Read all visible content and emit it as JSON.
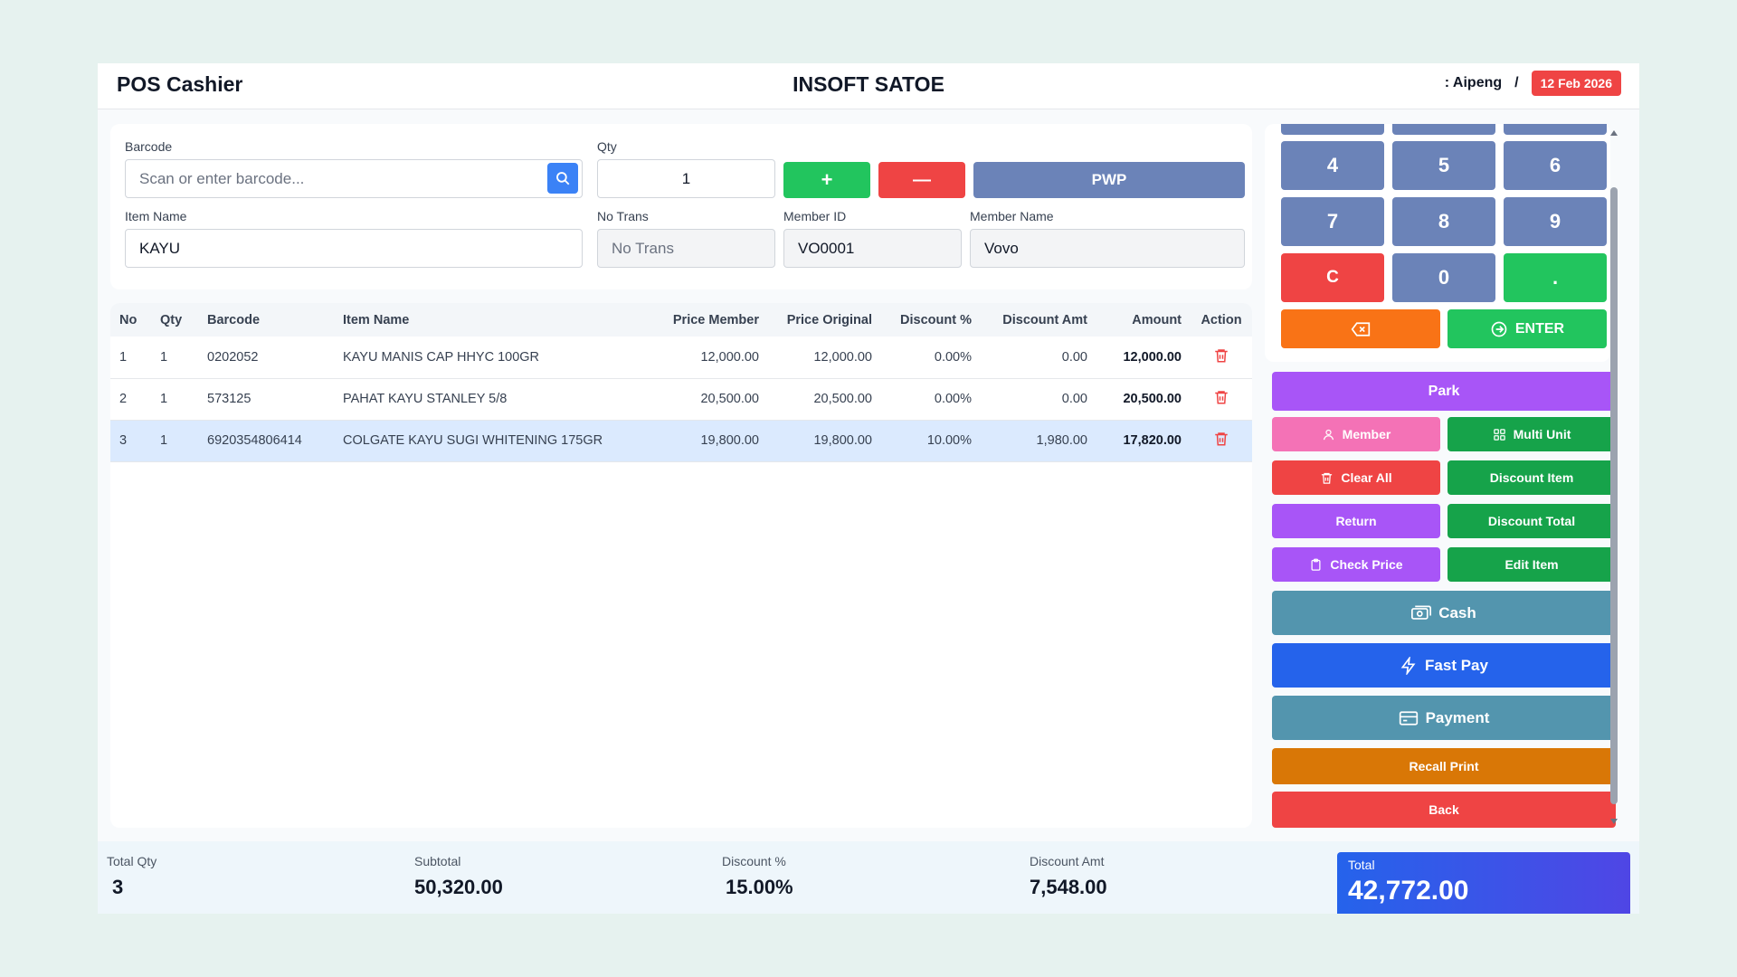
{
  "header": {
    "app_title": "POS Cashier",
    "store_name": "INSOFT SATOE",
    "user": ": Aipeng",
    "separator": "/",
    "date": "12 Feb 2026"
  },
  "form": {
    "barcode_label": "Barcode",
    "barcode_placeholder": "Scan or enter barcode...",
    "qty_label": "Qty",
    "qty_value": "1",
    "plus_label": "+",
    "minus_label": "—",
    "pwp_label": "PWP",
    "item_name_label": "Item Name",
    "item_name_value": "KAYU",
    "no_trans_label": "No Trans",
    "no_trans_placeholder": "No Trans",
    "member_id_label": "Member ID",
    "member_id_value": "VO0001",
    "member_name_label": "Member Name",
    "member_name_value": "Vovo"
  },
  "table": {
    "headers": [
      "No",
      "Qty",
      "Barcode",
      "Item Name",
      "Price Member",
      "Price Original",
      "Discount %",
      "Discount Amt",
      "Amount",
      "Action"
    ],
    "rows": [
      {
        "no": "1",
        "qty": "1",
        "barcode": "0202052",
        "item": "KAYU MANIS CAP HHYC 100GR",
        "price_member": "12,000.00",
        "price_original": "12,000.00",
        "disc_pct": "0.00%",
        "disc_amt": "0.00",
        "amount": "12,000.00"
      },
      {
        "no": "2",
        "qty": "1",
        "barcode": "573125",
        "item": "PAHAT KAYU STANLEY 5/8",
        "price_member": "20,500.00",
        "price_original": "20,500.00",
        "disc_pct": "0.00%",
        "disc_amt": "0.00",
        "amount": "20,500.00"
      },
      {
        "no": "3",
        "qty": "1",
        "barcode": "6920354806414",
        "item": "COLGATE KAYU SUGI WHITENING 175GR",
        "price_member": "19,800.00",
        "price_original": "19,800.00",
        "disc_pct": "10.00%",
        "disc_amt": "1,980.00",
        "amount": "17,820.00"
      }
    ]
  },
  "footer": {
    "total_qty_label": "Total Qty",
    "total_qty": "3",
    "subtotal_label": "Subtotal",
    "subtotal": "50,320.00",
    "discount_pct_label": "Discount %",
    "discount_pct": "15.00%",
    "discount_amt_label": "Discount Amt",
    "discount_amt": "7,548.00",
    "total_label": "Total",
    "total": "42,772.00"
  },
  "numpad": {
    "k4": "4",
    "k5": "5",
    "k6": "6",
    "k7": "7",
    "k8": "8",
    "k9": "9",
    "clear": "C",
    "k0": "0",
    "dot": ".",
    "enter": "ENTER"
  },
  "actions": {
    "park": "Park",
    "member": "Member",
    "multi_unit": "Multi Unit",
    "clear_all": "Clear All",
    "discount_item": "Discount Item",
    "return": "Return",
    "discount_total": "Discount Total",
    "check_price": "Check Price",
    "edit_item": "Edit Item",
    "cash": "Cash",
    "fast_pay": "Fast Pay",
    "payment": "Payment",
    "recall_print": "Recall Print",
    "back": "Back"
  },
  "colors": {
    "green": "#22c55e",
    "red": "#ef4444",
    "numpad_blue": "#6b83b8",
    "purple": "#a855f7",
    "teal": "#5395ae",
    "blue": "#2563eb",
    "orange": "#f97316",
    "amber": "#d97706",
    "pink": "#f472b6",
    "dark_green": "#16a34a"
  }
}
